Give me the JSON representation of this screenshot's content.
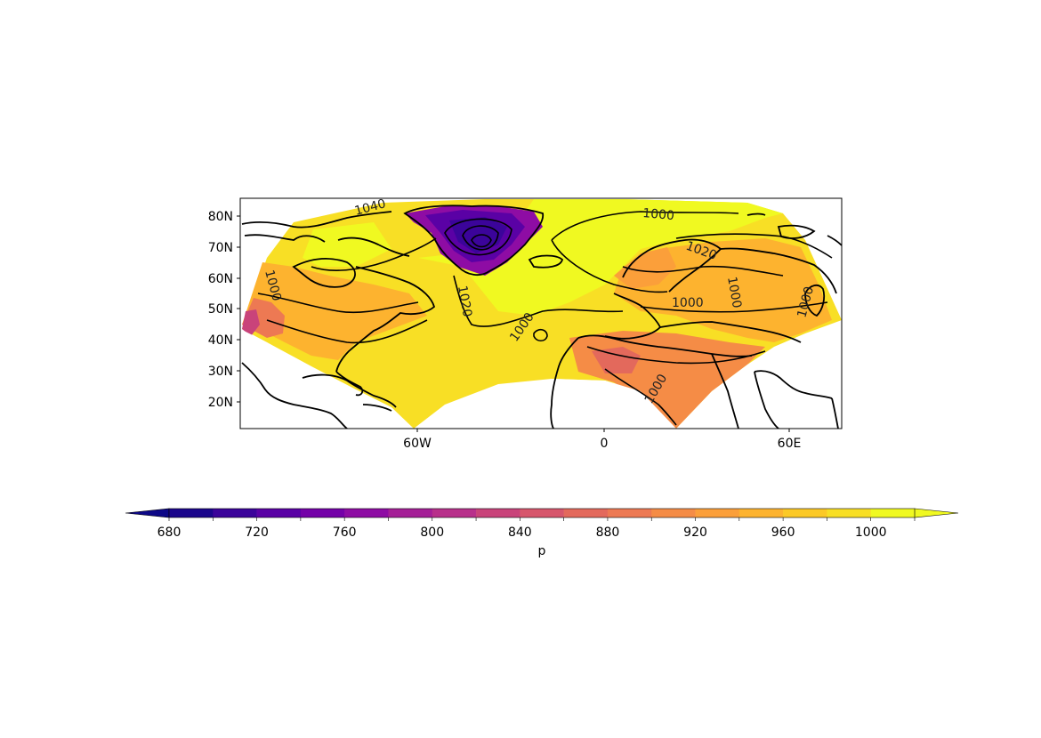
{
  "map": {
    "projection": "Lambert conformal (sector)",
    "lon_ticks": [
      "60W",
      "0",
      "60E"
    ],
    "lat_ticks": [
      "80N",
      "70N",
      "60N",
      "50N",
      "40N",
      "30N",
      "20N"
    ],
    "contour_labels": [
      "1040",
      "1020",
      "1000",
      "1000",
      "1020",
      "1000",
      "1000",
      "1000",
      "1000",
      "1000"
    ],
    "filled_field": "surface pressure",
    "contour_color": "#000000",
    "coastline_color": "#000000"
  },
  "colorbar": {
    "label": "p",
    "ticks": [
      "680",
      "720",
      "760",
      "800",
      "840",
      "880",
      "920",
      "960",
      "1000"
    ],
    "levels": [
      680,
      700,
      720,
      740,
      760,
      780,
      800,
      820,
      840,
      860,
      880,
      900,
      920,
      940,
      960,
      980,
      1000,
      1020
    ],
    "colors": [
      "#1b068c",
      "#3b049a",
      "#5a01a5",
      "#7401a8",
      "#8e0ca4",
      "#a51f97",
      "#b8308b",
      "#c9437a",
      "#d7566c",
      "#e3695c",
      "#ed7953",
      "#f58c46",
      "#fb9f3a",
      "#fdb32f",
      "#fcc926",
      "#f8df25",
      "#f0f921"
    ],
    "under_color": "#0d0887",
    "over_color": "#f0f921",
    "extend": "both"
  }
}
